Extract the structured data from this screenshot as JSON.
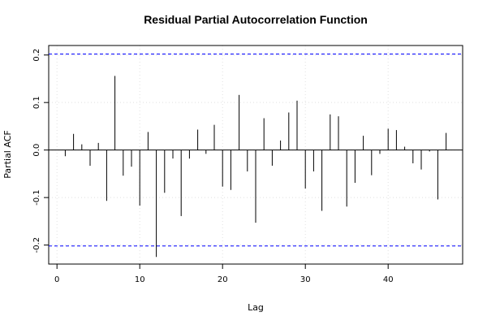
{
  "chart_data": {
    "type": "bar",
    "title": "Residual Partial Autocorrelation Function",
    "xlabel": "Lag",
    "ylabel": "Partial ACF",
    "x_ticks": [
      0,
      10,
      20,
      30,
      40
    ],
    "y_ticks": [
      -0.2,
      -0.1,
      0.0,
      0.1,
      0.2
    ],
    "y_tick_labels": [
      "-0.2",
      "-0.1",
      "0.0",
      "0.1",
      "0.2"
    ],
    "xlim": [
      -1,
      49
    ],
    "ylim": [
      -0.24,
      0.22
    ],
    "grid": true,
    "confidence_band": [
      -0.202,
      0.202
    ],
    "x": [
      1,
      2,
      3,
      4,
      5,
      6,
      7,
      8,
      9,
      10,
      11,
      12,
      13,
      14,
      15,
      16,
      17,
      18,
      19,
      20,
      21,
      22,
      23,
      24,
      25,
      26,
      27,
      28,
      29,
      30,
      31,
      32,
      33,
      34,
      35,
      36,
      37,
      38,
      39,
      40,
      41,
      42,
      43,
      44,
      45,
      46,
      47
    ],
    "values": [
      -0.013,
      0.034,
      0.012,
      -0.033,
      0.015,
      -0.107,
      0.156,
      -0.054,
      -0.035,
      -0.117,
      0.038,
      -0.225,
      -0.09,
      -0.018,
      -0.139,
      -0.018,
      0.043,
      -0.008,
      0.053,
      -0.077,
      -0.084,
      0.116,
      -0.045,
      -0.153,
      0.067,
      -0.033,
      0.02,
      0.079,
      0.104,
      -0.081,
      -0.045,
      -0.128,
      0.075,
      0.071,
      -0.119,
      -0.069,
      0.03,
      -0.053,
      -0.008,
      0.045,
      0.042,
      0.007,
      -0.028,
      -0.041,
      -0.003,
      -0.104,
      0.036
    ],
    "colors": {
      "bars": "#000000",
      "confidence_band": "#0000ff",
      "zero_line": "#000000",
      "grid": "#e0e0e0"
    }
  }
}
